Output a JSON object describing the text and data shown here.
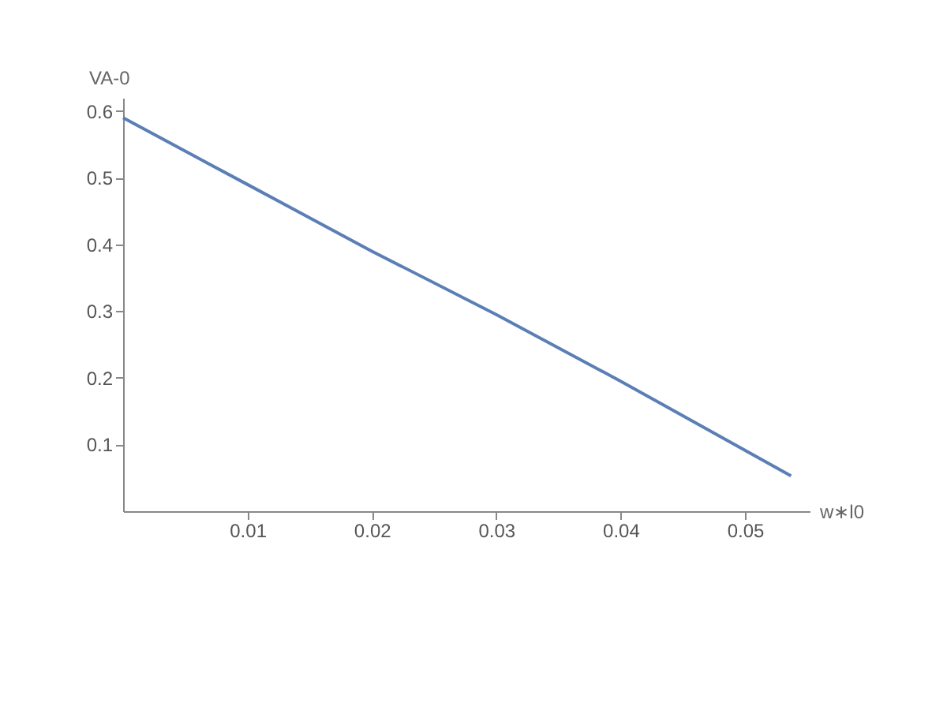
{
  "chart_data": {
    "type": "line",
    "xlabel": "w∗l0",
    "ylabel": "VA-0",
    "x": [
      0,
      0.01,
      0.02,
      0.03,
      0.04,
      0.0537
    ],
    "series": [
      {
        "color": "#5b7fb5",
        "values": [
          0.59,
          0.49,
          0.39,
          0.295,
          0.195,
          0.053
        ]
      }
    ],
    "xlim": [
      0,
      0.0552
    ],
    "xticks": [
      0.01,
      0.02,
      0.03,
      0.04,
      0.05
    ],
    "ylim": [
      0,
      0.62
    ],
    "yticks": [
      0.1,
      0.2,
      0.3,
      0.4,
      0.5,
      0.6
    ],
    "grid": false,
    "marker": "none",
    "line_style": "solid"
  }
}
